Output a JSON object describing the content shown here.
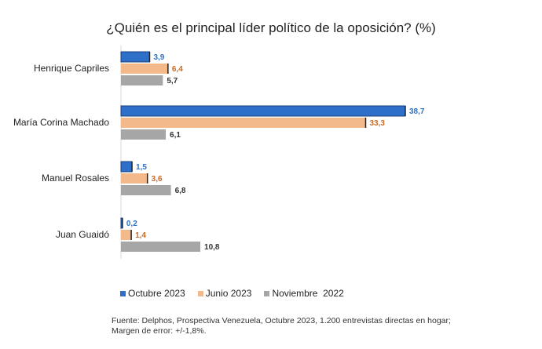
{
  "chart_data": {
    "type": "bar",
    "orientation": "horizontal",
    "title": "¿Quién es el principal líder político de la oposición? (%)",
    "categories": [
      "Henrique Capriles",
      "María Corina Machado",
      "Manuel Rosales",
      "Juan Guaidó"
    ],
    "series": [
      {
        "name": "Octubre 2023",
        "values": [
          3.9,
          38.7,
          1.5,
          0.2
        ],
        "labels": [
          "3,9",
          "38,7",
          "1,5",
          "0,2"
        ],
        "color": "#2e6fc9",
        "label_color": "#2f72c4"
      },
      {
        "name": "Junio 2023",
        "values": [
          6.4,
          33.3,
          3.6,
          1.4
        ],
        "labels": [
          "6,4",
          "33,3",
          "3,6",
          "1,4"
        ],
        "color": "#f4b98a",
        "label_color": "#c96a26"
      },
      {
        "name": "Noviembre  2022",
        "values": [
          5.7,
          6.1,
          6.8,
          10.8
        ],
        "labels": [
          "5,7",
          "6,1",
          "6,8",
          "10,8"
        ],
        "color": "#a6a6a6",
        "label_color": "#333333"
      }
    ],
    "xlim": [
      0,
      38.7
    ],
    "grid": false,
    "legend_position": "bottom"
  },
  "source_note": "Fuente: Delphos,  Prospectiva Venezuela, Octubre 2023, 1.200 entrevistas directas en hogar; Margen de error: +/-1,8%."
}
